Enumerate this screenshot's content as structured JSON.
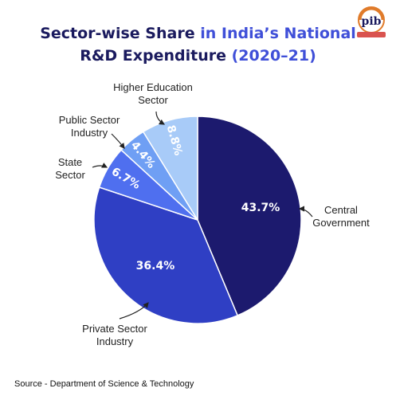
{
  "title": {
    "line1_part1": "Sector-wise Share",
    "line1_part2": " in ",
    "line1_part3": "India’s National",
    "line2_part1": "R&D Expenditure",
    "line2_part2": " (2020–21)"
  },
  "logo_text": "pib",
  "source": "Source - Department of Science & Technology",
  "colors": {
    "title_dark": "#1a1a5e",
    "title_accent": "#3f4fd8",
    "central": "#1c1a6e",
    "private": "#2f3fc4",
    "state": "#4f6fef",
    "public": "#6f9ff4",
    "higher_ed": "#a8cbf8"
  },
  "chart_data": {
    "type": "pie",
    "start": "12 o'clock, clockwise",
    "categories": [
      "Central Government",
      "Private Sector Industry",
      "State Sector",
      "Public Sector Industry",
      "Higher Education Sector"
    ],
    "category_lines": [
      [
        "Central",
        "Government"
      ],
      [
        "Private Sector",
        "Industry"
      ],
      [
        "State",
        "Sector"
      ],
      [
        "Public Sector",
        "Industry"
      ],
      [
        "Higher Education",
        "Sector"
      ]
    ],
    "values": [
      43.7,
      36.4,
      6.7,
      4.4,
      8.8
    ],
    "value_labels": [
      "43.7%",
      "36.4%",
      "6.7%",
      "4.4%",
      "8.8%"
    ],
    "slice_colors": [
      "#1c1a6e",
      "#2f3fc4",
      "#4f6fef",
      "#6f9ff4",
      "#a8cbf8"
    ]
  }
}
